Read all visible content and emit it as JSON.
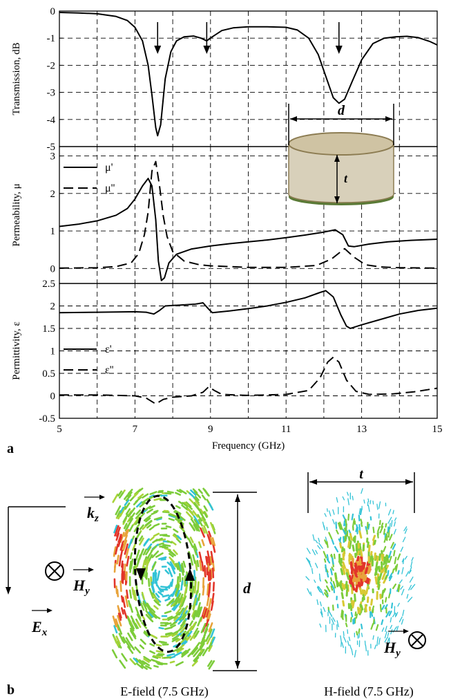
{
  "panel_labels": {
    "a": "a",
    "b": "b"
  },
  "chart_data": [
    {
      "type": "line",
      "ylabel": "Transmission, dB",
      "xlabel": "",
      "xlim": [
        5,
        15
      ],
      "ylim": [
        -5,
        0
      ],
      "yticks": [
        "-5",
        "-4",
        "-3",
        "-2",
        "-1",
        "0"
      ],
      "grid": true,
      "annotations": [
        {
          "kind": "down-arrow",
          "x": 7.6
        },
        {
          "kind": "down-arrow",
          "x": 8.9
        },
        {
          "kind": "down-arrow",
          "x": 12.4
        }
      ],
      "inset": {
        "description_labels": [
          "d",
          "t"
        ]
      },
      "series": [
        {
          "style": "solid",
          "points": [
            [
              5,
              -0.05
            ],
            [
              5.5,
              -0.07
            ],
            [
              6,
              -0.1
            ],
            [
              6.5,
              -0.2
            ],
            [
              6.8,
              -0.35
            ],
            [
              7.0,
              -0.6
            ],
            [
              7.2,
              -1.1
            ],
            [
              7.35,
              -2.0
            ],
            [
              7.45,
              -3.1
            ],
            [
              7.55,
              -4.3
            ],
            [
              7.6,
              -4.6
            ],
            [
              7.68,
              -4.2
            ],
            [
              7.8,
              -2.5
            ],
            [
              7.95,
              -1.5
            ],
            [
              8.1,
              -1.1
            ],
            [
              8.3,
              -0.95
            ],
            [
              8.55,
              -0.92
            ],
            [
              8.75,
              -1.0
            ],
            [
              8.9,
              -1.1
            ],
            [
              9.05,
              -0.95
            ],
            [
              9.3,
              -0.72
            ],
            [
              9.6,
              -0.62
            ],
            [
              10,
              -0.58
            ],
            [
              10.5,
              -0.58
            ],
            [
              11,
              -0.6
            ],
            [
              11.3,
              -0.7
            ],
            [
              11.6,
              -1.0
            ],
            [
              11.85,
              -1.6
            ],
            [
              12.05,
              -2.4
            ],
            [
              12.25,
              -3.2
            ],
            [
              12.4,
              -3.4
            ],
            [
              12.55,
              -3.25
            ],
            [
              12.75,
              -2.6
            ],
            [
              13.0,
              -1.8
            ],
            [
              13.3,
              -1.2
            ],
            [
              13.6,
              -1.0
            ],
            [
              13.9,
              -0.95
            ],
            [
              14.2,
              -0.93
            ],
            [
              14.5,
              -0.98
            ],
            [
              14.8,
              -1.12
            ],
            [
              15,
              -1.25
            ]
          ]
        }
      ]
    },
    {
      "type": "line",
      "ylabel": "Permeability, μ",
      "xlabel": "",
      "xlim": [
        5,
        15
      ],
      "ylim": [
        -0.4,
        3.25
      ],
      "yticks": [
        "0",
        "1",
        "2",
        "3"
      ],
      "grid": true,
      "legend": {
        "position": "top-left"
      },
      "series": [
        {
          "name": "μ'",
          "style": "solid",
          "points": [
            [
              5,
              1.12
            ],
            [
              5.5,
              1.18
            ],
            [
              6,
              1.27
            ],
            [
              6.5,
              1.42
            ],
            [
              6.8,
              1.6
            ],
            [
              7.0,
              1.85
            ],
            [
              7.2,
              2.2
            ],
            [
              7.35,
              2.4
            ],
            [
              7.45,
              2.2
            ],
            [
              7.55,
              1.3
            ],
            [
              7.62,
              0.2
            ],
            [
              7.7,
              -0.32
            ],
            [
              7.78,
              -0.25
            ],
            [
              7.9,
              0.15
            ],
            [
              8.1,
              0.38
            ],
            [
              8.5,
              0.52
            ],
            [
              9,
              0.6
            ],
            [
              9.5,
              0.66
            ],
            [
              10,
              0.71
            ],
            [
              10.5,
              0.76
            ],
            [
              11,
              0.82
            ],
            [
              11.5,
              0.89
            ],
            [
              12,
              0.97
            ],
            [
              12.3,
              1.03
            ],
            [
              12.5,
              0.9
            ],
            [
              12.65,
              0.6
            ],
            [
              12.8,
              0.58
            ],
            [
              13.2,
              0.65
            ],
            [
              13.7,
              0.71
            ],
            [
              14.3,
              0.75
            ],
            [
              15,
              0.78
            ]
          ]
        },
        {
          "name": "μ''",
          "style": "dashed",
          "points": [
            [
              5,
              0.01
            ],
            [
              6,
              0.02
            ],
            [
              6.5,
              0.05
            ],
            [
              6.9,
              0.15
            ],
            [
              7.1,
              0.4
            ],
            [
              7.25,
              0.9
            ],
            [
              7.35,
              1.5
            ],
            [
              7.45,
              2.6
            ],
            [
              7.55,
              2.85
            ],
            [
              7.65,
              2.2
            ],
            [
              7.75,
              1.4
            ],
            [
              7.85,
              0.85
            ],
            [
              8.0,
              0.45
            ],
            [
              8.3,
              0.2
            ],
            [
              8.7,
              0.1
            ],
            [
              9,
              0.07
            ],
            [
              10,
              0.03
            ],
            [
              11,
              0.03
            ],
            [
              11.8,
              0.08
            ],
            [
              12.2,
              0.25
            ],
            [
              12.55,
              0.53
            ],
            [
              12.8,
              0.3
            ],
            [
              13.1,
              0.1
            ],
            [
              13.5,
              0.04
            ],
            [
              14,
              0.02
            ],
            [
              15,
              0.01
            ]
          ]
        }
      ]
    },
    {
      "type": "line",
      "ylabel": "Permittivity, ε",
      "xlabel": "Frequency (GHz)",
      "xlim": [
        5,
        15
      ],
      "ylim": [
        -0.5,
        2.5
      ],
      "xticks": [
        "5",
        "7",
        "9",
        "11",
        "13",
        "15"
      ],
      "yticks": [
        "-0.5",
        "0",
        "0.5",
        "1",
        "1.5",
        "2",
        "2.5"
      ],
      "grid": true,
      "legend": {
        "position": "middle-left"
      },
      "series": [
        {
          "name": "ε'",
          "style": "solid",
          "points": [
            [
              5,
              1.85
            ],
            [
              6,
              1.86
            ],
            [
              7,
              1.87
            ],
            [
              7.3,
              1.86
            ],
            [
              7.5,
              1.82
            ],
            [
              7.65,
              1.9
            ],
            [
              7.8,
              2.0
            ],
            [
              8.2,
              2.02
            ],
            [
              8.6,
              2.04
            ],
            [
              8.8,
              2.07
            ],
            [
              8.95,
              1.93
            ],
            [
              9.05,
              1.85
            ],
            [
              9.5,
              1.89
            ],
            [
              10,
              1.94
            ],
            [
              10.5,
              2.0
            ],
            [
              11,
              2.08
            ],
            [
              11.5,
              2.18
            ],
            [
              11.9,
              2.3
            ],
            [
              12.05,
              2.34
            ],
            [
              12.25,
              2.2
            ],
            [
              12.45,
              1.8
            ],
            [
              12.6,
              1.55
            ],
            [
              12.7,
              1.5
            ],
            [
              13,
              1.58
            ],
            [
              13.5,
              1.7
            ],
            [
              14,
              1.82
            ],
            [
              14.5,
              1.9
            ],
            [
              15,
              1.95
            ]
          ]
        },
        {
          "name": "ε''",
          "style": "dashed",
          "points": [
            [
              5,
              0.02
            ],
            [
              6,
              0.02
            ],
            [
              7,
              0.0
            ],
            [
              7.3,
              -0.05
            ],
            [
              7.55,
              -0.18
            ],
            [
              7.75,
              -0.08
            ],
            [
              8.0,
              -0.03
            ],
            [
              8.5,
              0.0
            ],
            [
              8.8,
              0.08
            ],
            [
              8.95,
              0.2
            ],
            [
              9.1,
              0.12
            ],
            [
              9.3,
              0.03
            ],
            [
              10,
              0.01
            ],
            [
              11,
              0.03
            ],
            [
              11.6,
              0.12
            ],
            [
              11.9,
              0.4
            ],
            [
              12.1,
              0.75
            ],
            [
              12.25,
              0.86
            ],
            [
              12.4,
              0.75
            ],
            [
              12.6,
              0.35
            ],
            [
              12.85,
              0.1
            ],
            [
              13.2,
              0.03
            ],
            [
              13.8,
              0.04
            ],
            [
              14.4,
              0.09
            ],
            [
              15,
              0.17
            ]
          ]
        }
      ]
    }
  ],
  "panel_b": {
    "left_caption": "E-field (7.5 GHz)",
    "right_caption": "H-field (7.5 GHz)",
    "symbols": {
      "kz": {
        "main": "k",
        "sub": "z"
      },
      "hy": {
        "main": "H",
        "sub": "y"
      },
      "ex": {
        "main": "E",
        "sub": "x"
      },
      "d": "d",
      "t": "t"
    },
    "colors": {
      "low": "#33c3d6",
      "mid": "#7ccc3a",
      "high": "#e2352a"
    }
  }
}
